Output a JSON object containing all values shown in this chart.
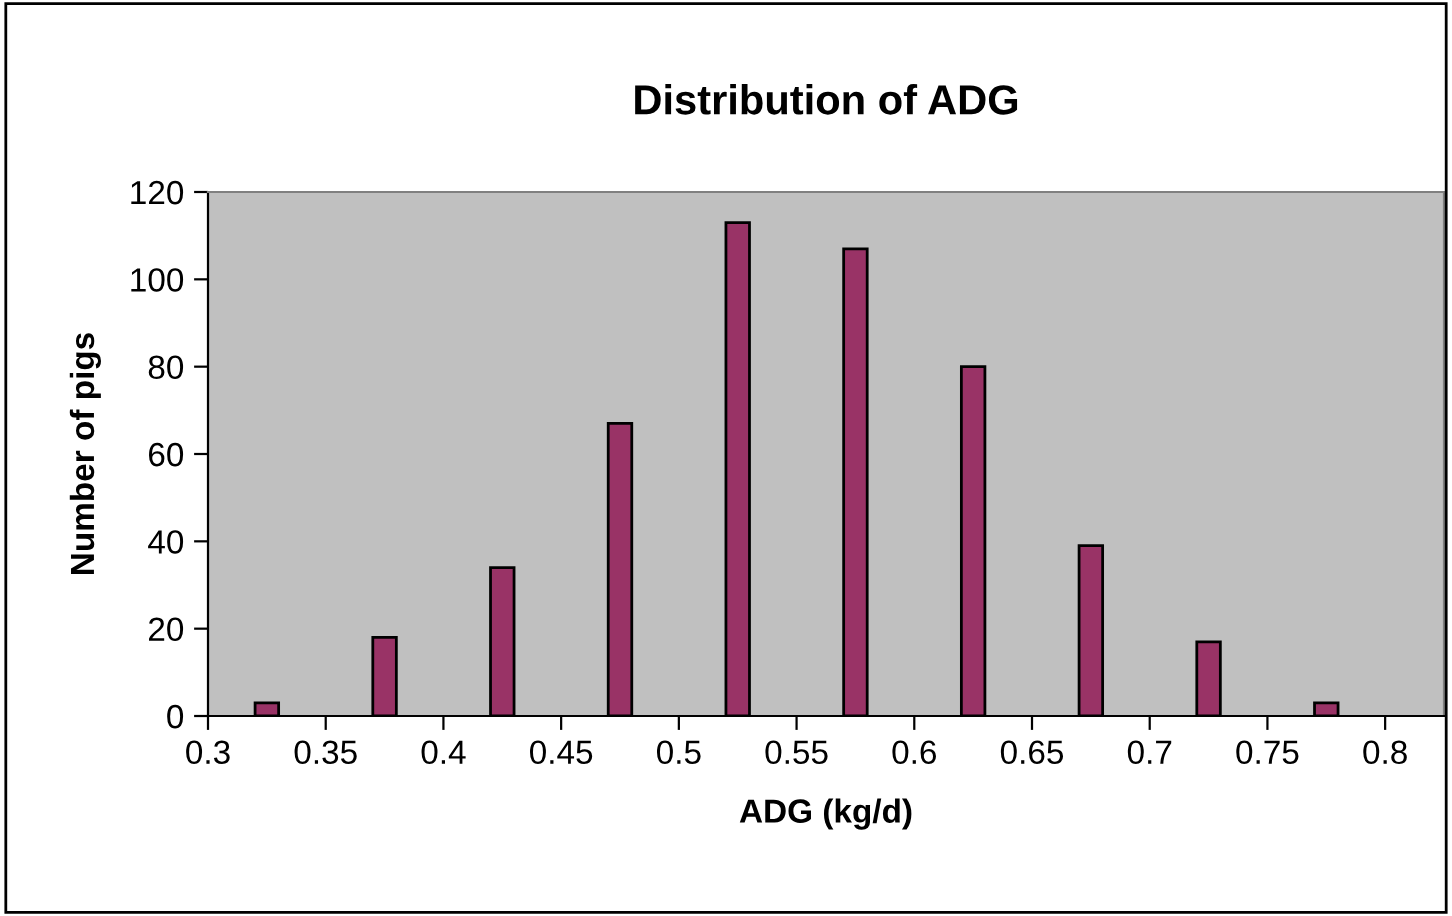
{
  "chart_data": {
    "type": "histogram",
    "title": "Distribution of ADG",
    "xlabel": "ADG (kg/d)",
    "ylabel": "Number of pigs",
    "bins": [
      0.3,
      0.35,
      0.4,
      0.45,
      0.5,
      0.55,
      0.6,
      0.65,
      0.7,
      0.75,
      0.8
    ],
    "values": [
      3,
      18,
      34,
      67,
      113,
      107,
      80,
      39,
      17,
      3
    ],
    "color": "#993366",
    "xlim": [
      0.3,
      0.825
    ],
    "xticks": [
      0.3,
      0.35,
      0.4,
      0.45,
      0.5,
      0.55,
      0.6,
      0.65,
      0.7,
      0.75,
      0.8
    ],
    "ylim": [
      0,
      120
    ],
    "yticks": [
      0,
      20,
      40,
      60,
      80,
      100,
      120
    ],
    "grid": false,
    "legend": false
  }
}
